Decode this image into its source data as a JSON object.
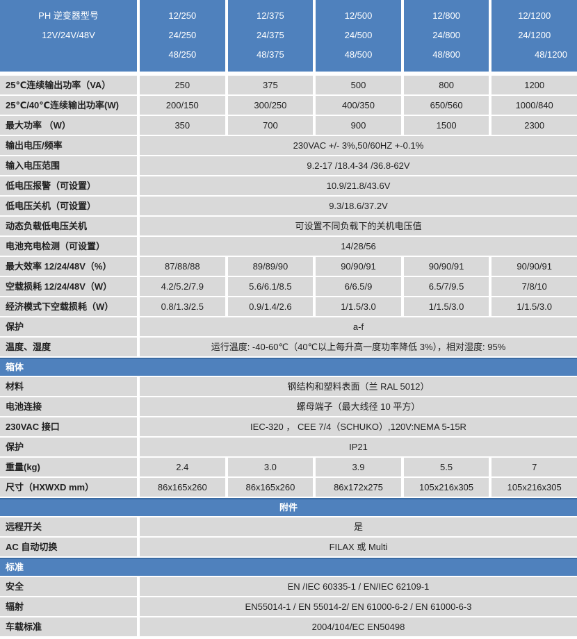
{
  "colors": {
    "header_blue": "#4f81bd",
    "band_border_blue": "#3a6ba3",
    "row_gray": "#d9d9d9",
    "text_dark": "#1f1f1f",
    "text_white": "#ffffff"
  },
  "header": {
    "title_line1": "PH 逆变器型号",
    "title_line2": "12V/24V/48V",
    "models": [
      [
        "12/250",
        "24/250",
        "48/250"
      ],
      [
        "12/375",
        "24/375",
        "48/375"
      ],
      [
        "12/500",
        "24/500",
        "48/500"
      ],
      [
        "12/800",
        "24/800",
        "48/800"
      ],
      [
        "12/1200",
        "24/1200",
        "48/1200"
      ]
    ]
  },
  "sections": [
    {
      "band": null,
      "rows": [
        {
          "label": "25℃连续输出功率（VA）",
          "values": [
            "250",
            "375",
            "500",
            "800",
            "1200"
          ]
        },
        {
          "label": "25℃/40℃连续输出功率(W)",
          "values": [
            "200/150",
            "300/250",
            "400/350",
            "650/560",
            "1000/840"
          ]
        },
        {
          "label": "最大功率 （W）",
          "values": [
            "350",
            "700",
            "900",
            "1500",
            "2300"
          ]
        },
        {
          "label": "输出电压/频率",
          "merged": "230VAC +/- 3%,50/60HZ +-0.1%"
        },
        {
          "label": "输入电压范围",
          "merged": "9.2-17 /18.4-34 /36.8-62V"
        },
        {
          "label": "低电压报警（可设置）",
          "merged": "10.9/21.8/43.6V"
        },
        {
          "label": "低电压关机（可设置）",
          "merged": "9.3/18.6/37.2V"
        },
        {
          "label": "动态负载低电压关机",
          "merged": "可设置不同负载下的关机电压值"
        },
        {
          "label": "电池充电检测（可设置）",
          "merged": "14/28/56"
        },
        {
          "label": "最大效率 12/24/48V（%）",
          "values": [
            "87/88/88",
            "89/89/90",
            "90/90/91",
            "90/90/91",
            "90/90/91"
          ]
        },
        {
          "label": "空载损耗 12/24/48V（W）",
          "values": [
            "4.2/5.2/7.9",
            "5.6/6.1/8.5",
            "6/6.5/9",
            "6.5/7/9.5",
            "7/8/10"
          ]
        },
        {
          "label": "经济模式下空载损耗（W）",
          "values": [
            "0.8/1.3/2.5",
            "0.9/1.4/2.6",
            "1/1.5/3.0",
            "1/1.5/3.0",
            "1/1.5/3.0"
          ]
        },
        {
          "label": "保护",
          "merged": "a-f"
        },
        {
          "label": "温度、湿度",
          "merged": "运行温度: -40-60℃（40℃以上每升高一度功率降低 3%），相对湿度: 95%"
        }
      ]
    },
    {
      "band": {
        "label": "箱体",
        "align": "left"
      },
      "rows": [
        {
          "label": "材料",
          "merged": "钢结构和塑料表面（兰  RAL 5012）"
        },
        {
          "label": "电池连接",
          "merged": "螺母端子（最大线径 10 平方）"
        },
        {
          "label": "230VAC 接口",
          "merged": "IEC-320 ， CEE 7/4（SCHUKO）,120V:NEMA 5-15R"
        },
        {
          "label": "保护",
          "merged": "IP21"
        },
        {
          "label": "重量(kg)",
          "values": [
            "2.4",
            "3.0",
            "3.9",
            "5.5",
            "7"
          ]
        },
        {
          "label": "尺寸（HXWXD mm）",
          "values": [
            "86x165x260",
            "86x165x260",
            "86x172x275",
            "105x216x305",
            "105x216x305"
          ]
        }
      ]
    },
    {
      "band": {
        "label": "附件",
        "align": "center"
      },
      "rows": [
        {
          "label": "远程开关",
          "merged": "是"
        },
        {
          "label": "AC 自动切换",
          "merged": "FILAX 或 Multi"
        }
      ]
    },
    {
      "band": {
        "label": "标准",
        "align": "left"
      },
      "rows": [
        {
          "label": "安全",
          "merged": "EN /IEC 60335-1 / EN/IEC 62109-1"
        },
        {
          "label": "辐射",
          "merged": "EN55014-1 / EN 55014-2/ EN 61000-6-2 / EN 61000-6-3"
        },
        {
          "label": "车载标准",
          "merged": "2004/104/EC EN50498"
        }
      ]
    }
  ]
}
